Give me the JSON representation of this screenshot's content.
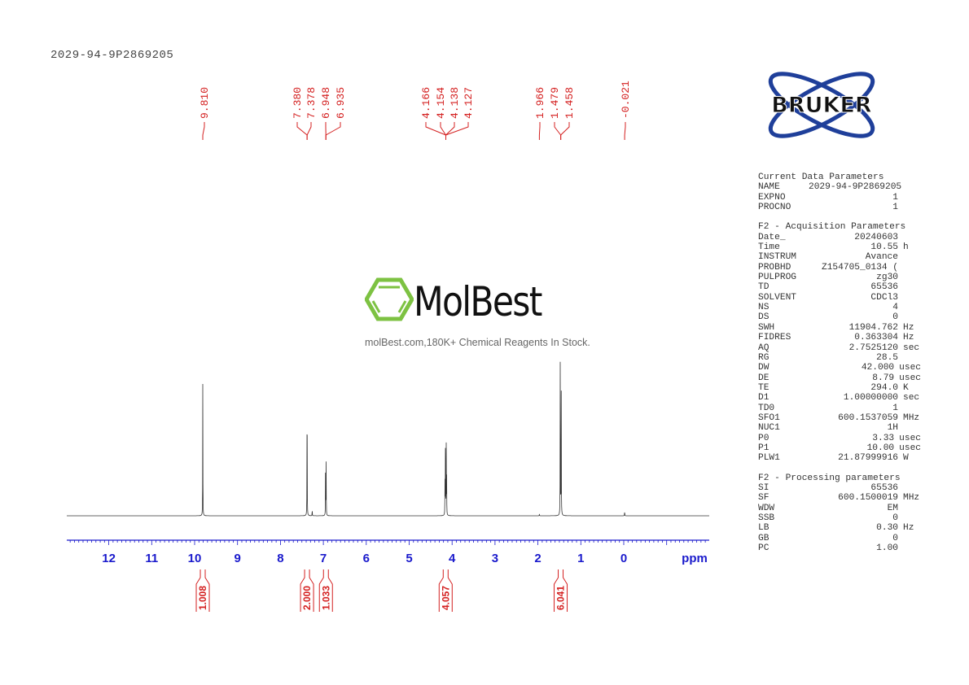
{
  "title": "2029-94-9P2869205",
  "watermark": {
    "name": "MolBest",
    "tagline": "molBest.com,180K+ Chemical Reagents In Stock."
  },
  "logo": {
    "text": "BRUKER"
  },
  "colors": {
    "axis": "#1a1acc",
    "peaks": "#d42020",
    "spectrum": "#333333",
    "logo_green": "#7dc242",
    "logo_blue": "#1f3f9a"
  },
  "chart_data": {
    "type": "line",
    "xlabel": "ppm",
    "xlim": [
      13,
      -2
    ],
    "x_ticks": [
      12,
      11,
      10,
      9,
      8,
      7,
      6,
      5,
      4,
      3,
      2,
      1,
      0
    ],
    "grid": false,
    "peak_labels": [
      "9.810",
      "7.380",
      "7.378",
      "6.948",
      "6.935",
      "4.166",
      "4.154",
      "4.138",
      "4.127",
      "1.966",
      "1.479",
      "1.458",
      "-0.021"
    ],
    "peaks": [
      {
        "ppm": 9.81,
        "intensity": 0.74
      },
      {
        "ppm": 7.38,
        "intensity": 0.42
      },
      {
        "ppm": 7.378,
        "intensity": 0.38
      },
      {
        "ppm": 7.26,
        "intensity": 0.04
      },
      {
        "ppm": 6.948,
        "intensity": 0.34
      },
      {
        "ppm": 6.935,
        "intensity": 0.3
      },
      {
        "ppm": 4.166,
        "intensity": 0.2
      },
      {
        "ppm": 4.154,
        "intensity": 0.5
      },
      {
        "ppm": 4.138,
        "intensity": 0.5
      },
      {
        "ppm": 4.127,
        "intensity": 0.2
      },
      {
        "ppm": 1.966,
        "intensity": 0.012
      },
      {
        "ppm": 1.479,
        "intensity": 1.0
      },
      {
        "ppm": 1.458,
        "intensity": 0.98
      },
      {
        "ppm": -0.021,
        "intensity": 0.03
      }
    ],
    "integrals": [
      {
        "ppm": 9.81,
        "value": "1.008"
      },
      {
        "ppm": 7.38,
        "value": "2.000"
      },
      {
        "ppm": 6.94,
        "value": "1.033"
      },
      {
        "ppm": 4.15,
        "value": "4.057"
      },
      {
        "ppm": 1.47,
        "value": "6.041"
      }
    ]
  },
  "parameters": {
    "sections": [
      {
        "title": "Current Data Parameters",
        "rows": [
          [
            "NAME",
            "2029-94-9P2869205",
            ""
          ],
          [
            "EXPNO",
            "1",
            ""
          ],
          [
            "PROCNO",
            "1",
            ""
          ]
        ]
      },
      {
        "title": "F2 - Acquisition Parameters",
        "rows": [
          [
            "Date_",
            "20240603",
            ""
          ],
          [
            "Time",
            "10.55",
            "h"
          ],
          [
            "INSTRUM",
            "Avance",
            ""
          ],
          [
            "PROBHD",
            "Z154705_0134 (",
            ""
          ],
          [
            "PULPROG",
            "zg30",
            ""
          ],
          [
            "TD",
            "65536",
            ""
          ],
          [
            "SOLVENT",
            "CDCl3",
            ""
          ],
          [
            "NS",
            "4",
            ""
          ],
          [
            "DS",
            "0",
            ""
          ],
          [
            "SWH",
            "11904.762",
            "Hz"
          ],
          [
            "FIDRES",
            "0.363304",
            "Hz"
          ],
          [
            "AQ",
            "2.7525120",
            "sec"
          ],
          [
            "RG",
            "28.5",
            ""
          ],
          [
            "DW",
            "42.000",
            "usec"
          ],
          [
            "DE",
            "8.79",
            "usec"
          ],
          [
            "TE",
            "294.0",
            "K"
          ],
          [
            "D1",
            "1.00000000",
            "sec"
          ],
          [
            "TD0",
            "1",
            ""
          ],
          [
            "SFO1",
            "600.1537059",
            "MHz"
          ],
          [
            "NUC1",
            "1H",
            ""
          ],
          [
            "P0",
            "3.33",
            "usec"
          ],
          [
            "P1",
            "10.00",
            "usec"
          ],
          [
            "PLW1",
            "21.87999916",
            "W"
          ]
        ]
      },
      {
        "title": "F2 - Processing parameters",
        "rows": [
          [
            "SI",
            "65536",
            ""
          ],
          [
            "SF",
            "600.1500019",
            "MHz"
          ],
          [
            "WDW",
            "EM",
            ""
          ],
          [
            "SSB",
            "0",
            ""
          ],
          [
            "LB",
            "0.30",
            "Hz"
          ],
          [
            "GB",
            "0",
            ""
          ],
          [
            "PC",
            "1.00",
            ""
          ]
        ]
      }
    ]
  }
}
